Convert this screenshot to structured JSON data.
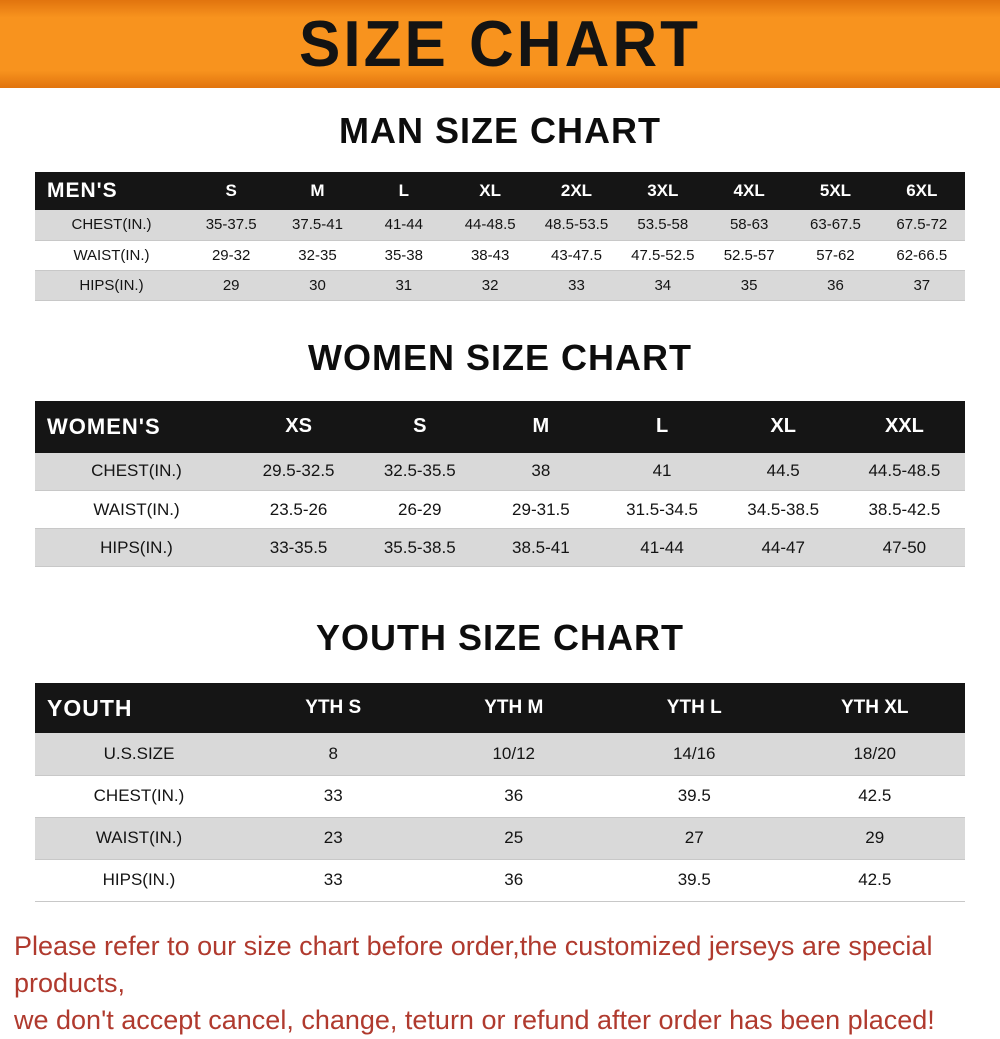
{
  "banner": {
    "title": "SIZE CHART",
    "bg_color": "#f8931e",
    "text_color": "#131313"
  },
  "sections": [
    {
      "heading": "MAN SIZE CHART",
      "table": {
        "header": [
          "MEN'S",
          "S",
          "M",
          "L",
          "XL",
          "2XL",
          "3XL",
          "4XL",
          "5XL",
          "6XL"
        ],
        "rows": [
          [
            "CHEST(IN.)",
            "35-37.5",
            "37.5-41",
            "41-44",
            "44-48.5",
            "48.5-53.5",
            "53.5-58",
            "58-63",
            "63-67.5",
            "67.5-72"
          ],
          [
            "WAIST(IN.)",
            "29-32",
            "32-35",
            "35-38",
            "38-43",
            "43-47.5",
            "47.5-52.5",
            "52.5-57",
            "57-62",
            "62-66.5"
          ],
          [
            "HIPS(IN.)",
            "29",
            "30",
            "31",
            "32",
            "33",
            "34",
            "35",
            "36",
            "37"
          ]
        ]
      }
    },
    {
      "heading": "WOMEN SIZE CHART",
      "table": {
        "header": [
          "WOMEN'S",
          "XS",
          "S",
          "M",
          "L",
          "XL",
          "XXL"
        ],
        "rows": [
          [
            "CHEST(IN.)",
            "29.5-32.5",
            "32.5-35.5",
            "38",
            "41",
            "44.5",
            "44.5-48.5"
          ],
          [
            "WAIST(IN.)",
            "23.5-26",
            "26-29",
            "29-31.5",
            "31.5-34.5",
            "34.5-38.5",
            "38.5-42.5"
          ],
          [
            "HIPS(IN.)",
            "33-35.5",
            "35.5-38.5",
            "38.5-41",
            "41-44",
            "44-47",
            "47-50"
          ]
        ]
      }
    },
    {
      "heading": "YOUTH SIZE CHART",
      "table": {
        "header": [
          "YOUTH",
          "YTH S",
          "YTH M",
          "YTH L",
          "YTH XL"
        ],
        "rows": [
          [
            "U.S.SIZE",
            "8",
            "10/12",
            "14/16",
            "18/20"
          ],
          [
            "CHEST(IN.)",
            "33",
            "36",
            "39.5",
            "42.5"
          ],
          [
            "WAIST(IN.)",
            "23",
            "25",
            "27",
            "29"
          ],
          [
            "HIPS(IN.)",
            "33",
            "36",
            "39.5",
            "42.5"
          ]
        ]
      }
    }
  ],
  "footer": {
    "line1": "Please refer to our size chart before order,the customized jerseys are special products,",
    "line2": "we don't accept cancel, change, teturn or refund after order has been placed!",
    "text_color": "#b03a2e"
  }
}
